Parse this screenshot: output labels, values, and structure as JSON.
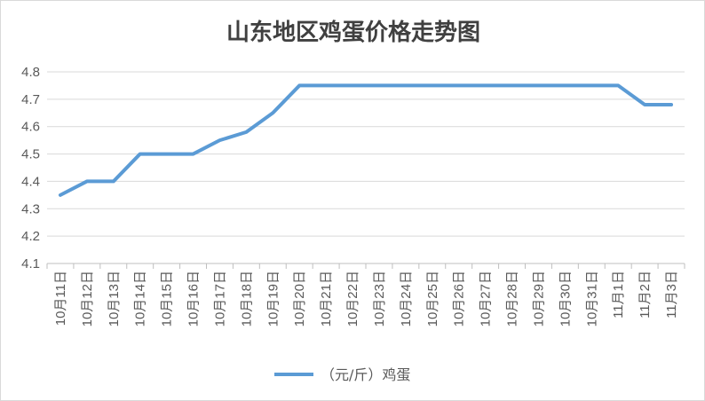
{
  "chart_data": {
    "type": "line",
    "title": "山东地区鸡蛋价格走势图",
    "categories": [
      "10月11日",
      "10月12日",
      "10月13日",
      "10月14日",
      "10月15日",
      "10月16日",
      "10月17日",
      "10月18日",
      "10月19日",
      "10月20日",
      "10月21日",
      "10月22日",
      "10月23日",
      "10月24日",
      "10月25日",
      "10月26日",
      "10月27日",
      "10月28日",
      "10月29日",
      "10月30日",
      "10月31日",
      "11月1日",
      "11月2日",
      "11月3日"
    ],
    "series": [
      {
        "name": "（元/斤）鸡蛋",
        "values": [
          4.35,
          4.4,
          4.4,
          4.5,
          4.5,
          4.5,
          4.55,
          4.58,
          4.65,
          4.75,
          4.75,
          4.75,
          4.75,
          4.75,
          4.75,
          4.75,
          4.75,
          4.75,
          4.75,
          4.75,
          4.75,
          4.75,
          4.68,
          4.68
        ]
      }
    ],
    "ylim": [
      4.1,
      4.8
    ],
    "yticks": [
      "4.1",
      "4.2",
      "4.3",
      "4.4",
      "4.5",
      "4.6",
      "4.7",
      "4.8"
    ],
    "grid": true,
    "legend_position": "bottom",
    "series_color": "#5b9bd5"
  }
}
